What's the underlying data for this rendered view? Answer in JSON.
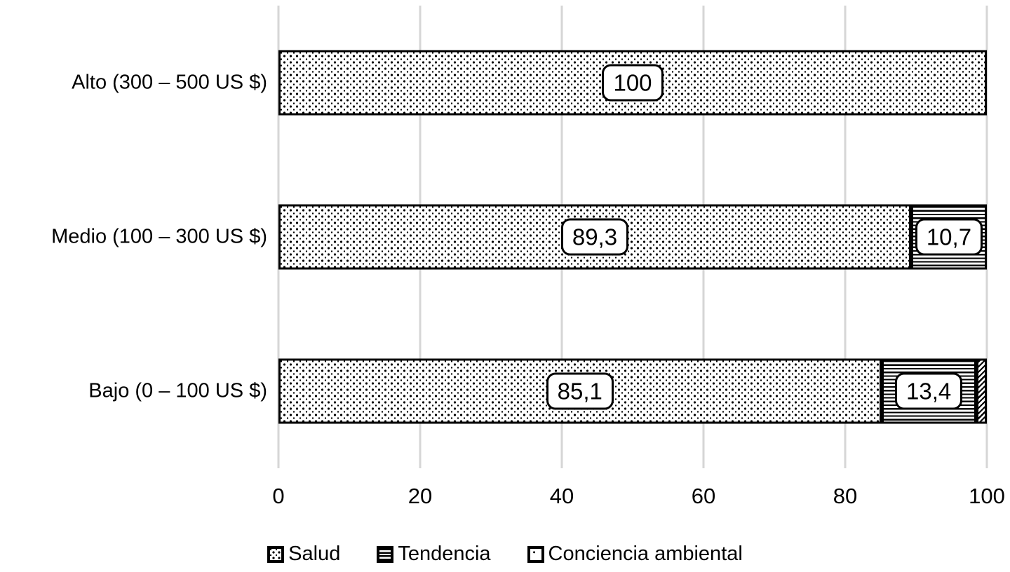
{
  "chart_data": {
    "type": "bar",
    "orientation": "horizontal",
    "stacked": true,
    "title": "",
    "xlabel": "",
    "ylabel": "",
    "xlim": [
      0,
      100
    ],
    "x_ticks": [
      "0",
      "20",
      "40",
      "60",
      "80",
      "100"
    ],
    "grid": "vertical",
    "legend_position": "bottom",
    "categories": [
      "Alto (300 – 500 US $)",
      "Medio (100 – 300 US $)",
      "Bajo (0 – 100 US $)"
    ],
    "series": [
      {
        "name": "Salud",
        "pattern": "dots",
        "values": [
          100,
          89.3,
          85.1
        ],
        "labels": [
          "100",
          "89,3",
          "85,1"
        ]
      },
      {
        "name": "Tendencia",
        "pattern": "hlines",
        "values": [
          0,
          10.7,
          13.4
        ],
        "labels": [
          "",
          "10,7",
          "13,4"
        ]
      },
      {
        "name": "Conciencia ambiental",
        "pattern": "diag",
        "values": [
          0,
          0,
          1.5
        ],
        "labels": [
          "",
          "",
          ""
        ]
      }
    ]
  },
  "colors": {
    "foreground": "#000000",
    "background": "#ffffff",
    "gridline": "#d6d6d6"
  }
}
